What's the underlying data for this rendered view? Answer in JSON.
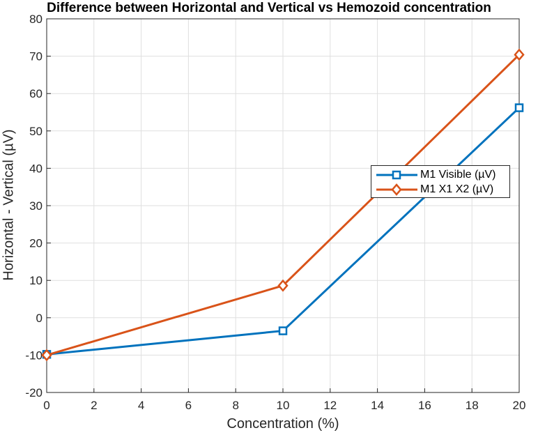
{
  "chart_data": {
    "type": "line",
    "title": "Difference between Horizontal and Vertical vs Hemozoid concentration",
    "xlabel": "Concentration (%)",
    "ylabel": "Horizontal - Vertical (µV)",
    "xlim": [
      0,
      20
    ],
    "ylim": [
      -20,
      80
    ],
    "xticks": [
      0,
      2,
      4,
      6,
      8,
      10,
      12,
      14,
      16,
      18,
      20
    ],
    "yticks": [
      -20,
      -10,
      0,
      10,
      20,
      30,
      40,
      50,
      60,
      70,
      80
    ],
    "grid": true,
    "legend_position": "right",
    "x": [
      0,
      10,
      20
    ],
    "series": [
      {
        "name": "M1 Visible (µV)",
        "values": [
          -9.8,
          -3.5,
          56.2
        ],
        "color": "#0072BD",
        "marker": "square"
      },
      {
        "name": "M1 X1 X2 (µV)",
        "values": [
          -10.0,
          8.6,
          70.4
        ],
        "color": "#D95319",
        "marker": "diamond"
      }
    ]
  }
}
